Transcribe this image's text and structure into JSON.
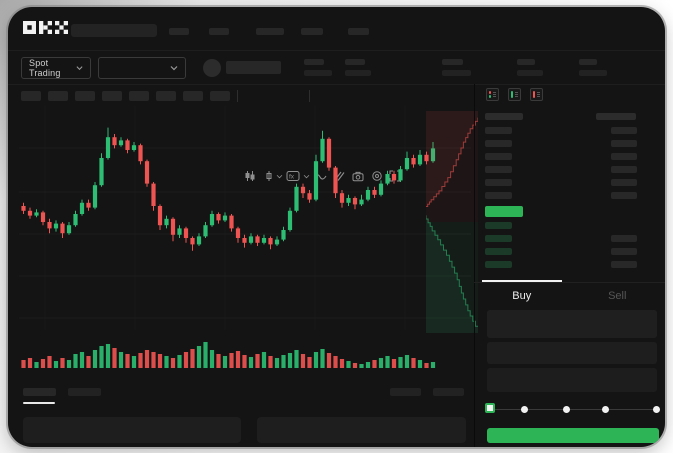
{
  "app": {
    "brand": "OKX"
  },
  "ticker": {
    "market_selector_label": "Spot Trading"
  },
  "trade_panel": {
    "buy_tab": "Buy",
    "sell_tab": "Sell"
  },
  "colors": {
    "candle_up": "#2dbd73",
    "candle_down": "#ee5451",
    "accent_green": "#2cb457",
    "bid_row_tint": "#1b3a28",
    "skeleton": "#272727"
  },
  "orderbook": {
    "view_icons": [
      "book-combined-icon",
      "book-bids-icon",
      "book-asks-icon"
    ],
    "ask_rows": 6,
    "bid_rows": 4,
    "bid_right_blocks": [
      false,
      true,
      true,
      true
    ]
  },
  "chart_data": {
    "type": "candlestick+volume+depth",
    "value_scale": [
      0,
      100
    ],
    "candles_ohlc": [
      [
        50,
        52,
        45,
        47
      ],
      [
        47,
        49,
        42,
        44
      ],
      [
        44,
        48,
        43,
        46
      ],
      [
        46,
        47,
        38,
        40
      ],
      [
        40,
        42,
        33,
        36
      ],
      [
        36,
        41,
        34,
        39
      ],
      [
        39,
        40,
        30,
        33
      ],
      [
        33,
        40,
        32,
        38
      ],
      [
        38,
        47,
        37,
        45
      ],
      [
        45,
        54,
        44,
        52
      ],
      [
        52,
        54,
        47,
        49
      ],
      [
        49,
        65,
        48,
        63
      ],
      [
        63,
        83,
        62,
        80
      ],
      [
        80,
        99,
        79,
        93
      ],
      [
        93,
        95,
        86,
        88
      ],
      [
        88,
        93,
        87,
        91
      ],
      [
        91,
        92,
        83,
        85
      ],
      [
        85,
        90,
        84,
        88
      ],
      [
        88,
        89,
        76,
        78
      ],
      [
        78,
        79,
        62,
        64
      ],
      [
        64,
        65,
        47,
        50
      ],
      [
        50,
        51,
        35,
        38
      ],
      [
        38,
        44,
        36,
        42
      ],
      [
        42,
        43,
        28,
        32
      ],
      [
        32,
        38,
        30,
        36
      ],
      [
        36,
        37,
        27,
        30
      ],
      [
        30,
        31,
        22,
        26
      ],
      [
        26,
        33,
        25,
        31
      ],
      [
        31,
        40,
        30,
        38
      ],
      [
        38,
        47,
        37,
        45
      ],
      [
        45,
        46,
        39,
        41
      ],
      [
        41,
        46,
        40,
        44
      ],
      [
        44,
        45,
        34,
        36
      ],
      [
        36,
        37,
        27,
        30
      ],
      [
        30,
        32,
        24,
        27
      ],
      [
        27,
        33,
        26,
        31
      ],
      [
        31,
        32,
        25,
        27
      ],
      [
        27,
        32,
        26,
        30
      ],
      [
        30,
        31,
        23,
        26
      ],
      [
        26,
        31,
        25,
        29
      ],
      [
        29,
        37,
        28,
        35
      ],
      [
        35,
        49,
        34,
        47
      ],
      [
        47,
        64,
        46,
        62
      ],
      [
        62,
        64,
        55,
        58
      ],
      [
        58,
        60,
        52,
        54
      ],
      [
        54,
        82,
        53,
        78
      ],
      [
        78,
        97,
        77,
        92
      ],
      [
        92,
        93,
        72,
        74
      ],
      [
        74,
        75,
        55,
        58
      ],
      [
        58,
        60,
        49,
        52
      ],
      [
        52,
        57,
        50,
        55
      ],
      [
        55,
        56,
        48,
        51
      ],
      [
        51,
        57,
        50,
        54
      ],
      [
        54,
        62,
        53,
        60
      ],
      [
        60,
        62,
        55,
        57
      ],
      [
        57,
        66,
        56,
        64
      ],
      [
        64,
        72,
        63,
        70
      ],
      [
        70,
        72,
        64,
        66
      ],
      [
        66,
        75,
        65,
        73
      ],
      [
        73,
        84,
        72,
        80
      ],
      [
        80,
        82,
        74,
        76
      ],
      [
        76,
        85,
        75,
        82
      ],
      [
        82,
        84,
        76,
        78
      ],
      [
        78,
        90,
        77,
        86
      ]
    ],
    "volume": [
      8,
      10,
      6,
      9,
      12,
      7,
      10,
      8,
      14,
      16,
      12,
      18,
      22,
      24,
      20,
      16,
      14,
      12,
      15,
      18,
      16,
      14,
      12,
      10,
      13,
      16,
      19,
      22,
      26,
      18,
      14,
      12,
      15,
      17,
      13,
      11,
      14,
      16,
      12,
      10,
      13,
      15,
      18,
      14,
      11,
      16,
      19,
      15,
      12,
      9,
      7,
      5,
      4,
      6,
      8,
      10,
      12,
      9,
      11,
      13,
      10,
      8,
      5,
      6
    ],
    "depth": {
      "asks": [
        [
          1,
          0.03
        ],
        [
          0.85,
          0.08
        ],
        [
          0.72,
          0.14
        ],
        [
          0.58,
          0.22
        ],
        [
          0.42,
          0.3
        ],
        [
          0.25,
          0.36
        ],
        [
          0.1,
          0.4
        ],
        [
          0,
          0.43
        ]
      ],
      "bids": [
        [
          0,
          0.47
        ],
        [
          0.12,
          0.52
        ],
        [
          0.28,
          0.58
        ],
        [
          0.45,
          0.65
        ],
        [
          0.6,
          0.73
        ],
        [
          0.72,
          0.82
        ],
        [
          0.85,
          0.9
        ],
        [
          1,
          0.97
        ]
      ]
    }
  }
}
